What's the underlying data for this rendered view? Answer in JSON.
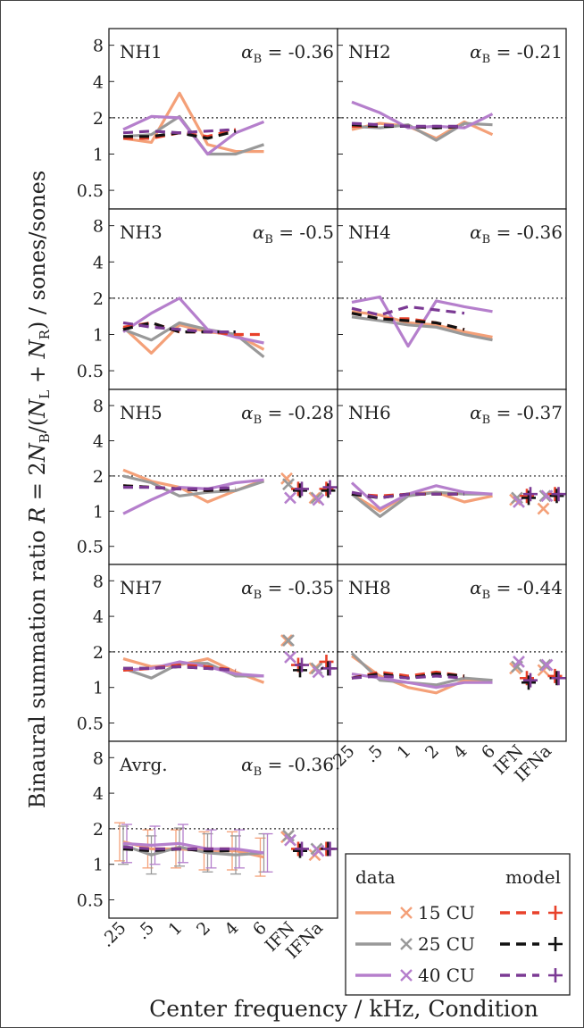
{
  "figure": {
    "ylabel": "Binaural summation ratio R = 2N_B/(N_L + N_R) / sones/sones",
    "ylabel_parts": {
      "pre": "Binaural summation ratio ",
      "R": "R",
      "eq": " = 2",
      "N": "N",
      "sub_B": "B",
      "slash": "/(",
      "sub_L": "L",
      "plus": " + ",
      "sub_R": "R",
      "tail": ") / sones/sones"
    },
    "xlabel": "Center frequency / kHz, Condition",
    "y_ticks": [
      "8",
      "4",
      "2",
      "1",
      "0.5"
    ],
    "x_ticks": [
      ".25",
      ".5",
      "1",
      "2",
      "4",
      "6",
      "IFN",
      "IFNa"
    ],
    "alpha_symbol": "α",
    "alpha_sub": "B"
  },
  "legend": {
    "data_header": "data",
    "model_header": "model",
    "entries": [
      {
        "label": "15 CU",
        "data_color": "#f4a078",
        "model_color": "#e8412a"
      },
      {
        "label": "25 CU",
        "data_color": "#999999",
        "model_color": "#111111"
      },
      {
        "label": "40 CU",
        "data_color": "#b57fcc",
        "model_color": "#7b3a94"
      }
    ]
  },
  "chart_data": {
    "type": "line",
    "y_scale": "log2",
    "ylim": [
      0.35,
      11
    ],
    "x": [
      ".25",
      ".5",
      "1",
      "2",
      "4",
      "6",
      "IFN",
      "IFNa"
    ],
    "panels": [
      {
        "title": "NH1",
        "alpha": "-0.36",
        "data": [
          [
            1.35,
            1.25,
            3.2,
            1.2,
            1.05,
            1.05
          ],
          [
            1.4,
            1.45,
            2.05,
            1.0,
            1.0,
            1.2
          ],
          [
            1.6,
            2.05,
            2.0,
            1.0,
            1.5,
            1.85
          ]
        ],
        "model": [
          [
            1.35,
            1.35,
            1.5,
            1.4,
            1.6,
            null
          ],
          [
            1.4,
            1.4,
            1.5,
            1.35,
            1.55,
            null
          ],
          [
            1.5,
            1.55,
            1.5,
            1.55,
            1.6,
            null
          ]
        ],
        "cond_data": null,
        "cond_model": null
      },
      {
        "title": "NH2",
        "alpha": "-0.21",
        "data": [
          [
            1.6,
            1.8,
            1.7,
            1.35,
            1.85,
            1.45
          ],
          [
            1.7,
            1.65,
            1.75,
            1.3,
            1.8,
            1.75
          ],
          [
            2.7,
            2.2,
            1.65,
            1.7,
            1.65,
            2.15
          ]
        ],
        "model": [
          [
            1.7,
            1.7,
            1.7,
            1.65,
            1.7,
            null
          ],
          [
            1.75,
            1.7,
            1.7,
            1.65,
            1.7,
            null
          ],
          [
            1.8,
            1.75,
            1.7,
            1.7,
            1.7,
            null
          ]
        ],
        "cond_data": null,
        "cond_model": null
      },
      {
        "title": "NH3",
        "alpha": "-0.5",
        "data": [
          [
            1.15,
            0.7,
            1.2,
            1.05,
            1.0,
            0.75
          ],
          [
            1.1,
            0.9,
            1.25,
            1.1,
            1.0,
            0.65
          ],
          [
            1.05,
            1.5,
            2.0,
            1.1,
            0.95,
            0.85
          ]
        ],
        "model": [
          [
            1.15,
            1.25,
            1.05,
            1.05,
            1.0,
            1.0
          ],
          [
            1.1,
            1.25,
            1.05,
            1.05,
            1.05,
            null
          ],
          [
            1.25,
            1.15,
            1.1,
            1.05,
            1.05,
            null
          ]
        ],
        "cond_data": null,
        "cond_model": null
      },
      {
        "title": "NH4",
        "alpha": "-0.36",
        "data": [
          [
            1.55,
            1.45,
            1.25,
            1.2,
            1.05,
            0.95
          ],
          [
            1.4,
            1.3,
            1.2,
            1.15,
            1.0,
            0.9
          ],
          [
            1.85,
            2.05,
            0.8,
            1.9,
            1.7,
            1.55
          ]
        ],
        "model": [
          [
            1.5,
            1.35,
            1.35,
            1.25,
            1.1,
            null
          ],
          [
            1.5,
            1.35,
            1.3,
            1.25,
            1.1,
            null
          ],
          [
            1.65,
            1.45,
            1.7,
            1.6,
            1.5,
            null
          ]
        ],
        "cond_data": null,
        "cond_model": null
      },
      {
        "title": "NH5",
        "alpha": "-0.28",
        "data": [
          [
            2.25,
            1.8,
            1.6,
            1.2,
            1.5,
            1.85
          ],
          [
            2.0,
            1.75,
            1.35,
            1.45,
            1.5,
            1.8
          ],
          [
            0.95,
            1.25,
            1.6,
            1.55,
            1.75,
            1.85
          ]
        ],
        "model": [
          [
            1.65,
            1.6,
            1.55,
            1.5,
            1.55,
            null
          ],
          [
            1.65,
            1.6,
            1.55,
            1.5,
            1.55,
            null
          ],
          [
            1.6,
            1.6,
            1.55,
            1.55,
            1.6,
            null
          ]
        ],
        "cond_data": [
          [
            1.9,
            1.3
          ],
          [
            1.7,
            1.3
          ],
          [
            1.3,
            1.25
          ]
        ],
        "cond_model": [
          [
            1.55,
            1.55
          ],
          [
            1.5,
            1.5
          ],
          [
            1.55,
            1.6
          ]
        ]
      },
      {
        "title": "NH6",
        "alpha": "-0.37",
        "data": [
          [
            1.4,
            1.0,
            1.4,
            1.45,
            1.2,
            1.35
          ],
          [
            1.4,
            0.9,
            1.35,
            1.45,
            1.4,
            1.4
          ],
          [
            1.75,
            1.05,
            1.4,
            1.65,
            1.45,
            1.4
          ]
        ],
        "model": [
          [
            1.4,
            1.35,
            1.4,
            1.4,
            1.4,
            null
          ],
          [
            1.4,
            1.3,
            1.4,
            1.4,
            1.4,
            null
          ],
          [
            1.45,
            1.3,
            1.4,
            1.4,
            1.4,
            null
          ]
        ],
        "cond_data": [
          [
            1.25,
            1.05
          ],
          [
            1.3,
            1.35
          ],
          [
            1.2,
            1.35
          ]
        ],
        "cond_model": [
          [
            1.35,
            1.4
          ],
          [
            1.3,
            1.35
          ],
          [
            1.4,
            1.4
          ]
        ]
      },
      {
        "title": "NH7",
        "alpha": "-0.35",
        "data": [
          [
            1.75,
            1.5,
            1.55,
            1.75,
            1.35,
            1.1
          ],
          [
            1.45,
            1.2,
            1.6,
            1.6,
            1.25,
            1.25
          ],
          [
            1.4,
            1.45,
            1.65,
            1.5,
            1.3,
            1.25
          ]
        ],
        "model": [
          [
            1.4,
            1.45,
            1.55,
            1.5,
            1.4,
            null
          ],
          [
            1.45,
            1.45,
            1.5,
            1.45,
            1.4,
            null
          ],
          [
            1.45,
            1.45,
            1.5,
            1.45,
            1.4,
            null
          ]
        ],
        "cond_data": [
          [
            2.5,
            1.45
          ],
          [
            2.5,
            1.45
          ],
          [
            1.8,
            1.35
          ]
        ],
        "cond_model": [
          [
            1.55,
            1.65
          ],
          [
            1.4,
            1.45
          ],
          [
            1.55,
            1.45
          ]
        ]
      },
      {
        "title": "NH8",
        "alpha": "-0.44",
        "data": [
          [
            1.85,
            1.25,
            1.0,
            0.9,
            1.15,
            1.15
          ],
          [
            1.95,
            1.15,
            1.1,
            1.05,
            1.2,
            1.15
          ],
          [
            1.3,
            1.2,
            1.1,
            1.0,
            1.1,
            1.1
          ]
        ],
        "model": [
          [
            1.2,
            1.35,
            1.25,
            1.35,
            1.25,
            null
          ],
          [
            1.2,
            1.3,
            1.2,
            1.3,
            1.25,
            null
          ],
          [
            1.2,
            1.25,
            1.2,
            1.25,
            1.2,
            null
          ]
        ],
        "cond_data": [
          [
            1.45,
            1.4
          ],
          [
            1.5,
            1.55
          ],
          [
            1.65,
            1.55
          ]
        ],
        "cond_model": [
          [
            1.2,
            1.25
          ],
          [
            1.1,
            1.2
          ],
          [
            1.15,
            1.2
          ]
        ]
      },
      {
        "title": "Avrg.",
        "alpha": "-0.36",
        "data": [
          [
            1.55,
            1.35,
            1.35,
            1.3,
            1.3,
            1.15
          ],
          [
            1.45,
            1.2,
            1.4,
            1.25,
            1.2,
            1.25
          ],
          [
            1.5,
            1.45,
            1.5,
            1.35,
            1.35,
            1.25
          ]
        ],
        "model": [
          [
            1.35,
            1.35,
            1.35,
            1.35,
            1.35,
            null
          ],
          [
            1.35,
            1.3,
            1.35,
            1.3,
            1.3,
            null
          ],
          [
            1.4,
            1.35,
            1.35,
            1.35,
            1.35,
            null
          ]
        ],
        "cond_data": [
          [
            1.7,
            1.2
          ],
          [
            1.75,
            1.35
          ],
          [
            1.6,
            1.3
          ]
        ],
        "cond_model": [
          [
            1.35,
            1.35
          ],
          [
            1.3,
            1.35
          ],
          [
            1.35,
            1.35
          ]
        ],
        "errorbars": true
      }
    ]
  }
}
